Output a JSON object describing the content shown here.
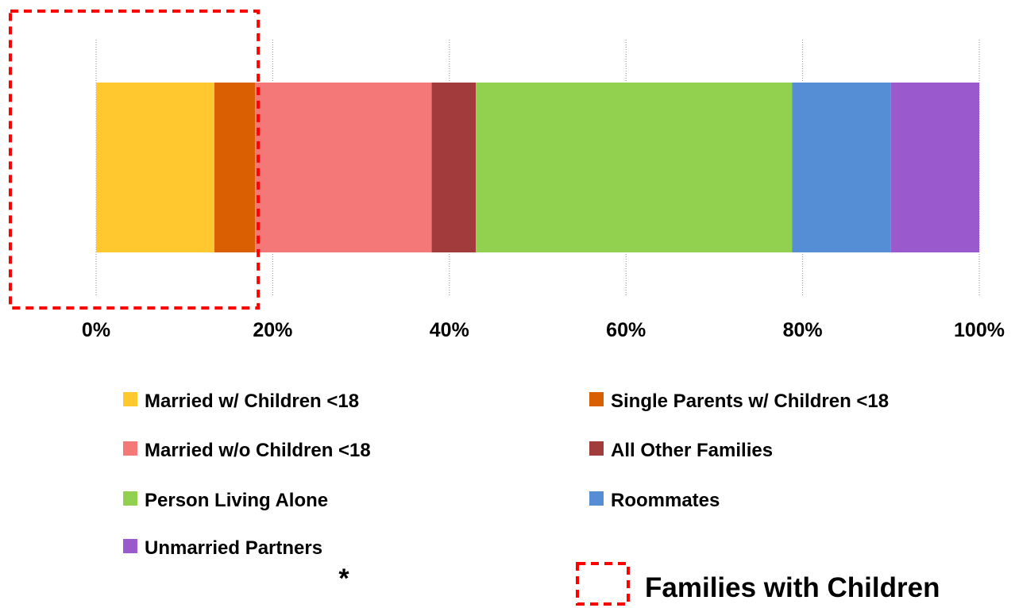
{
  "chart_data": {
    "type": "bar",
    "orientation": "horizontal",
    "stacked": true,
    "categories": [
      ""
    ],
    "series": [
      {
        "name": "Married w/ Children <18",
        "values": [
          13.4
        ],
        "color": "#FFC82E"
      },
      {
        "name": "Single Parents  w/ Children <18",
        "values": [
          4.6
        ],
        "color": "#D95F02"
      },
      {
        "name": "Married w/o Children <18",
        "values": [
          20.0
        ],
        "color": "#F57878"
      },
      {
        "name": "All Other Families",
        "values": [
          5.0
        ],
        "color": "#A23B3B"
      },
      {
        "name": "Person Living Alone",
        "values": [
          35.8
        ],
        "color": "#92D050"
      },
      {
        "name": "Roommates",
        "values": [
          11.2
        ],
        "color": "#558ED5"
      },
      {
        "name": "Unmarried Partners",
        "values": [
          10.0
        ],
        "color": "#9A5ACD"
      }
    ],
    "xlim": [
      0,
      100
    ],
    "xticks": [
      "0%",
      "20%",
      "40%",
      "60%",
      "80%",
      "100%"
    ],
    "grid": true,
    "legend_position": "bottom",
    "highlight_box": {
      "label": "Families with Children",
      "covers_series": [
        "Married w/ Children <18",
        "Single Parents  w/ Children <18"
      ],
      "color": "#FF0000",
      "style": "dashed"
    },
    "footnote_marker": "*"
  }
}
